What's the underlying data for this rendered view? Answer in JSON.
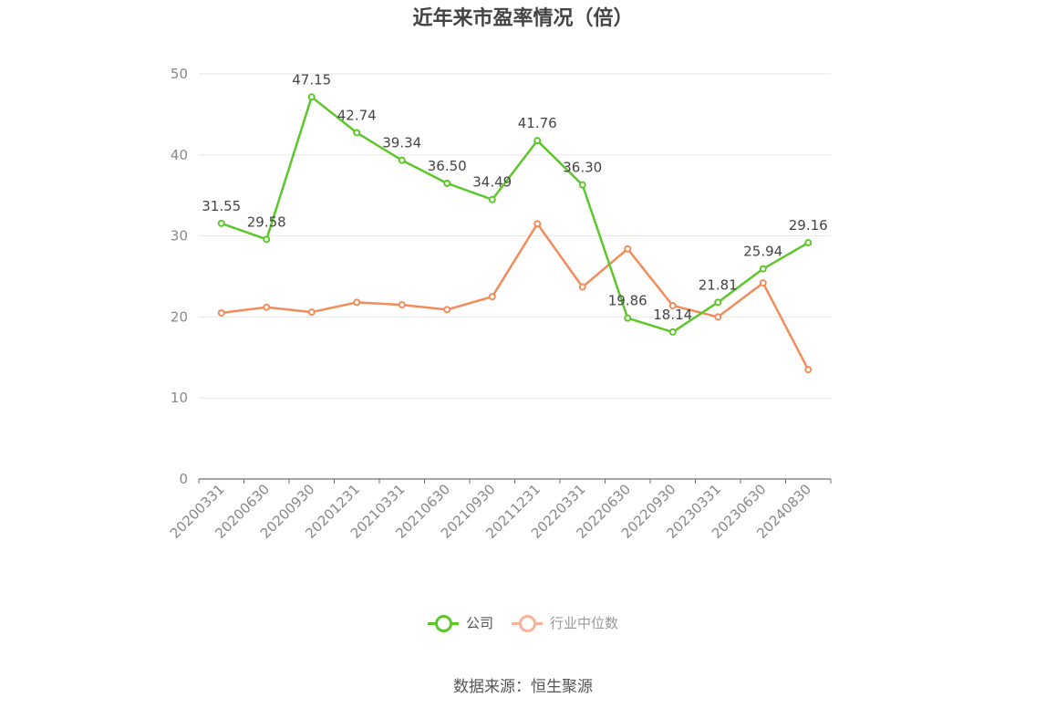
{
  "title": "近年来市盈率情况（倍）",
  "source": "数据来源：恒生聚源",
  "chart_data": {
    "type": "line",
    "title": "近年来市盈率情况（倍）",
    "categories": [
      "20200331",
      "20200630",
      "20200930",
      "20201231",
      "20210331",
      "20210630",
      "20210930",
      "20211231",
      "20220331",
      "20220630",
      "20220930",
      "20230331",
      "20230630",
      "20240830"
    ],
    "ylim": [
      0,
      50
    ],
    "yticks": [
      0,
      10,
      20,
      30,
      40,
      50
    ],
    "grid": true,
    "legend_position": "bottom",
    "series": [
      {
        "name": "公司",
        "color": "#5cc72b",
        "show_labels": true,
        "labels": [
          "31.55",
          "29.58",
          "47.15",
          "42.74",
          "39.34",
          "36.50",
          "34.49",
          "41.76",
          "36.30",
          "19.86",
          "18.14",
          "21.81",
          "25.94",
          "29.16"
        ],
        "values": [
          31.55,
          29.58,
          47.15,
          42.74,
          39.34,
          36.5,
          34.49,
          41.76,
          36.3,
          19.86,
          18.14,
          21.81,
          25.94,
          29.16
        ]
      },
      {
        "name": "行业中位数",
        "color": "#f28c5a",
        "show_labels": false,
        "values": [
          20.5,
          21.2,
          20.6,
          21.8,
          21.5,
          20.9,
          22.5,
          31.5,
          23.7,
          28.4,
          21.4,
          20.0,
          24.2,
          13.5
        ]
      }
    ]
  },
  "legend": [
    {
      "label": "公司",
      "color": "#5cc72b",
      "text_color": "#555555"
    },
    {
      "label": "行业中位数",
      "color": "#f5b49a",
      "text_color": "#999999"
    }
  ]
}
